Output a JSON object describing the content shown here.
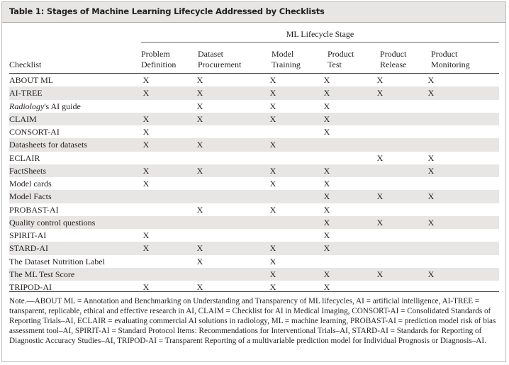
{
  "title": "Table 1: Stages of Machine Learning Lifecycle Addressed by Checklists",
  "spanner": "ML Lifecycle Stage",
  "columns": {
    "checklist": "Checklist",
    "problem_definition": [
      "Problem",
      "Definition"
    ],
    "dataset_procurement": [
      "Dataset",
      "Procurement"
    ],
    "model_training": [
      "Model",
      "Training"
    ],
    "product_test": [
      "Product",
      "Test"
    ],
    "product_release": [
      "Product",
      "Release"
    ],
    "product_monitoring": [
      "Product",
      "Monitoring"
    ]
  },
  "rows": [
    {
      "name": "ABOUT ML",
      "marks": [
        "X",
        "X",
        "X",
        "X",
        "X",
        "X"
      ]
    },
    {
      "name": "AI-TREE",
      "marks": [
        "X",
        "X",
        "X",
        "X",
        "X",
        "X"
      ]
    },
    {
      "name_italic": "Radiology",
      "name_rest": "'s AI guide",
      "marks": [
        "",
        "X",
        "X",
        "X",
        "",
        ""
      ]
    },
    {
      "name": "CLAIM",
      "marks": [
        "X",
        "X",
        "X",
        "X",
        "",
        ""
      ]
    },
    {
      "name": "CONSORT-AI",
      "marks": [
        "X",
        "",
        "",
        "X",
        "",
        ""
      ]
    },
    {
      "name": "Datasheets for datasets",
      "marks": [
        "X",
        "X",
        "X",
        "",
        "",
        ""
      ]
    },
    {
      "name": "ECLAIR",
      "marks": [
        "",
        "",
        "",
        "",
        "X",
        "X"
      ]
    },
    {
      "name": "FactSheets",
      "marks": [
        "X",
        "X",
        "X",
        "X",
        "",
        "X"
      ]
    },
    {
      "name": "Model cards",
      "marks": [
        "X",
        "",
        "X",
        "X",
        "",
        ""
      ]
    },
    {
      "name": "Model Facts",
      "marks": [
        "",
        "",
        "",
        "X",
        "X",
        "X"
      ]
    },
    {
      "name": "PROBAST-AI",
      "marks": [
        "",
        "X",
        "X",
        "X",
        "",
        ""
      ]
    },
    {
      "name": "Quality control questions",
      "marks": [
        "",
        "",
        "",
        "X",
        "X",
        "X"
      ]
    },
    {
      "name": "SPIRIT-AI",
      "marks": [
        "X",
        "",
        "",
        "X",
        "",
        ""
      ]
    },
    {
      "name": "STARD-AI",
      "marks": [
        "X",
        "X",
        "X",
        "X",
        "",
        ""
      ]
    },
    {
      "name": "The Dataset Nutrition Label",
      "marks": [
        "",
        "X",
        "X",
        "",
        "",
        ""
      ]
    },
    {
      "name": "The ML Test Score",
      "marks": [
        "",
        "",
        "X",
        "X",
        "X",
        "X"
      ]
    },
    {
      "name": "TRIPOD-AI",
      "marks": [
        "X",
        "X",
        "X",
        "X",
        "",
        ""
      ]
    }
  ],
  "note": "Note.—ABOUT ML = Annotation and Benchmarking on Understanding and Transparency of ML lifecycles, AI = artificial intelligence, AI-TREE = transparent, replicable, ethical and effective research in AI, CLAIM = Checklist for AI in Medical Imaging, CONSORT-AI = Consolidated Standards of Reporting Trials–AI, ECLAIR = evaluating commercial AI solutions in radiology, ML = machine learning, PROBAST-AI = prediction model risk of bias assessment tool–AI, SPIRIT-AI = Standard Protocol Items: Recommendations for Interventional Trials–AI, STARD-AI = Standards for Reporting of Diagnostic Accuracy Studies–AI, TRIPOD-AI = Transparent Reporting of a multivariable prediction model for Individual Prognosis or Diagnosis–AI.",
  "colors": {
    "shade": "#e8e6e4",
    "text": "#231f20"
  }
}
